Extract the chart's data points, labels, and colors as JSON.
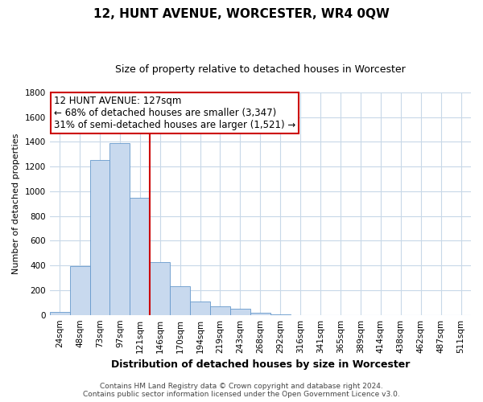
{
  "title": "12, HUNT AVENUE, WORCESTER, WR4 0QW",
  "subtitle": "Size of property relative to detached houses in Worcester",
  "xlabel": "Distribution of detached houses by size in Worcester",
  "ylabel": "Number of detached properties",
  "bar_labels": [
    "24sqm",
    "48sqm",
    "73sqm",
    "97sqm",
    "121sqm",
    "146sqm",
    "170sqm",
    "194sqm",
    "219sqm",
    "243sqm",
    "268sqm",
    "292sqm",
    "316sqm",
    "341sqm",
    "365sqm",
    "389sqm",
    "414sqm",
    "438sqm",
    "462sqm",
    "487sqm",
    "511sqm"
  ],
  "bar_values": [
    25,
    395,
    1255,
    1390,
    950,
    425,
    235,
    110,
    68,
    48,
    15,
    2,
    0,
    0,
    0,
    0,
    0,
    0,
    0,
    0,
    0
  ],
  "bar_fill_color": "#c8d9ee",
  "bar_edge_color": "#6699cc",
  "vline_x": 4.5,
  "vline_color": "#cc0000",
  "annotation_line1": "12 HUNT AVENUE: 127sqm",
  "annotation_line2": "← 68% of detached houses are smaller (3,347)",
  "annotation_line3": "31% of semi-detached houses are larger (1,521) →",
  "ylim": [
    0,
    1800
  ],
  "yticks": [
    0,
    200,
    400,
    600,
    800,
    1000,
    1200,
    1400,
    1600,
    1800
  ],
  "footer_text": "Contains HM Land Registry data © Crown copyright and database right 2024.\nContains public sector information licensed under the Open Government Licence v3.0.",
  "bg_color": "#ffffff",
  "grid_color": "#c8d8e8",
  "title_fontsize": 11,
  "subtitle_fontsize": 9,
  "tick_fontsize": 7.5,
  "ylabel_fontsize": 8,
  "xlabel_fontsize": 9,
  "annotation_fontsize": 8.5,
  "footer_fontsize": 6.5
}
